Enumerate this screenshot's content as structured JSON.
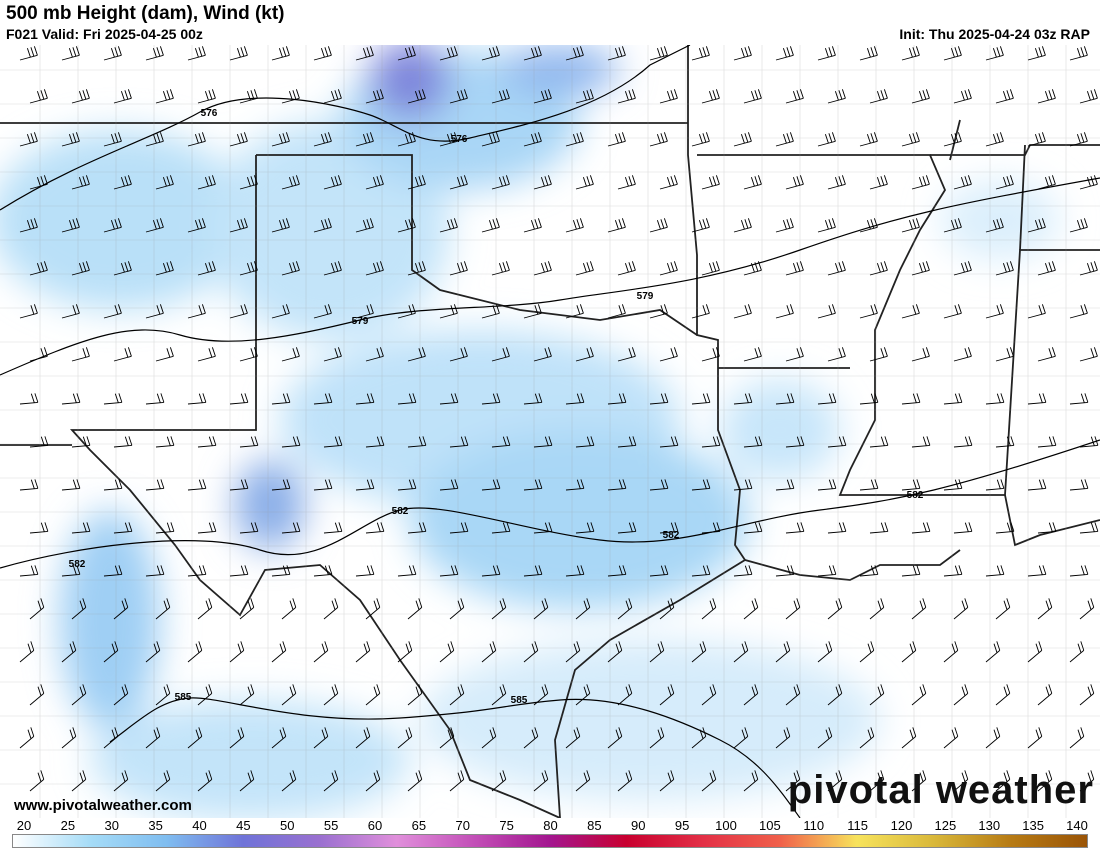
{
  "header": {
    "title": "500 mb Height (dam), Wind (kt)",
    "valid": "F021 Valid: Fri 2025-04-25 00z",
    "init": "Init: Thu 2025-04-24 03z RAP"
  },
  "branding": {
    "url": "www.pivotalweather.com",
    "logo": "pivotal weather"
  },
  "contours": [
    {
      "label": "576",
      "label2": "576"
    },
    {
      "label": "579",
      "label2": "579"
    },
    {
      "label": "582",
      "label2": "582",
      "label3": "582",
      "label4": "582"
    },
    {
      "label": "585",
      "label2": "585"
    }
  ],
  "colorbar": {
    "ticks": [
      "20",
      "25",
      "30",
      "35",
      "40",
      "45",
      "50",
      "55",
      "60",
      "65",
      "70",
      "75",
      "80",
      "85",
      "90",
      "95",
      "100",
      "105",
      "110",
      "115",
      "120",
      "125",
      "130",
      "135",
      "140"
    ],
    "colors": [
      "#ffffff",
      "#a6dcf7",
      "#7fbdf0",
      "#6f73d8",
      "#9a70d0",
      "#e08fdb",
      "#c350b8",
      "#a3168f",
      "#c8002f",
      "#e33046",
      "#f0604a",
      "#f7e35c",
      "#d9b83a",
      "#b77b14",
      "#9a5406"
    ],
    "unit": "kt"
  }
}
